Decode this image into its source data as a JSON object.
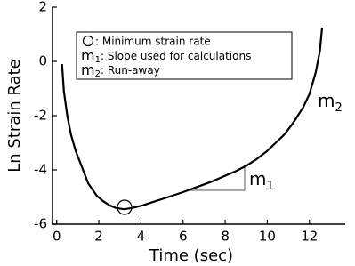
{
  "chart_data": {
    "type": "line",
    "x_label": "Time (sec)",
    "y_label": "Ln Strain Rate",
    "x": [
      0.25,
      0.34,
      0.5,
      0.68,
      0.9,
      1.1,
      1.5,
      1.9,
      2.2,
      2.5,
      2.8,
      3.2,
      3.6,
      4.1,
      4.7,
      5.3,
      6.0,
      6.6,
      7.3,
      7.9,
      8.5,
      9.0,
      9.5,
      10.0,
      10.4,
      10.8,
      11.2,
      11.7,
      12.0,
      12.3,
      12.5,
      12.6
    ],
    "values": [
      -0.1,
      -1.1,
      -2.0,
      -2.7,
      -3.3,
      -3.7,
      -4.5,
      -4.95,
      -5.15,
      -5.3,
      -5.4,
      -5.45,
      -5.4,
      -5.3,
      -5.15,
      -5.0,
      -4.82,
      -4.65,
      -4.45,
      -4.25,
      -4.05,
      -3.85,
      -3.6,
      -3.3,
      -3.0,
      -2.7,
      -2.3,
      -1.7,
      -1.2,
      -0.4,
      0.4,
      1.25
    ],
    "color": "#000000",
    "xlim": [
      -0.2,
      13.7
    ],
    "ylim": [
      -6,
      2
    ],
    "xticks": [
      0,
      2,
      4,
      6,
      8,
      10,
      12
    ],
    "yticks": [
      -6,
      -4,
      -2,
      0,
      2
    ],
    "legend": [
      {
        "text": ": Minimum strain rate"
      },
      {
        "main": "m",
        "sub": "1",
        "text": ": Slope used for calculations"
      },
      {
        "main": "m",
        "sub": "2",
        "text": ": Run-away"
      }
    ],
    "annotations": [
      {
        "main": "m",
        "sub": "1"
      },
      {
        "main": "m",
        "sub": "2"
      }
    ]
  }
}
